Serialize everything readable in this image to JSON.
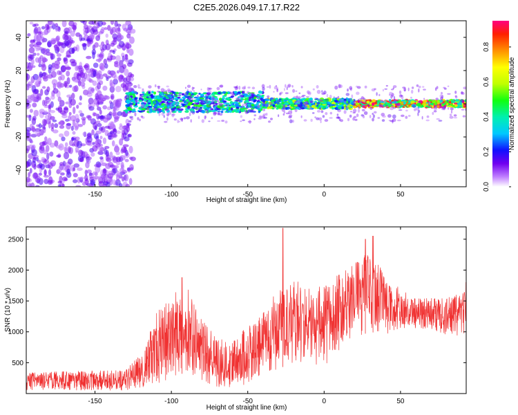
{
  "figure_title": "C2E5.2026.049.17.17.R22",
  "chart_data": [
    {
      "type": "heatmap",
      "xlabel": "Height of straight line (km)",
      "ylabel": "Frequency (Hz)",
      "xlim": [
        -195,
        93
      ],
      "ylim": [
        -50,
        50
      ],
      "xticks": [
        -150,
        -100,
        -50,
        0,
        50
      ],
      "yticks": [
        -40,
        -20,
        0,
        20,
        40
      ],
      "colorbar": {
        "label": "Normalized spectral amplitude",
        "range": [
          0,
          0.95
        ],
        "ticks": [
          0.0,
          0.2,
          0.4,
          0.6,
          0.8
        ],
        "tick_labels": [
          "0.0",
          "0.2",
          "0.4",
          "0.6",
          "0.8"
        ]
      },
      "regions": [
        {
          "x_range": [
            -195,
            -125
          ],
          "freq_range": [
            -50,
            50
          ],
          "amplitude": 0.1,
          "description": "broadband noise"
        },
        {
          "x_range": [
            -130,
            -40
          ],
          "freq_range": [
            -5,
            7
          ],
          "amplitude": 0.45
        },
        {
          "x_range": [
            -40,
            20
          ],
          "freq_range": [
            -3,
            3
          ],
          "amplitude": 0.55
        },
        {
          "x_range": [
            20,
            93
          ],
          "freq_range": [
            -2,
            2
          ],
          "amplitude": 0.9
        }
      ]
    },
    {
      "type": "line",
      "xlabel": "Height of straight line (km)",
      "ylabel": "SNR (10 * v/v)",
      "xlim": [
        -195,
        93
      ],
      "ylim": [
        0,
        2700
      ],
      "xticks": [
        -150,
        -100,
        -50,
        0,
        50
      ],
      "yticks": [
        500,
        1000,
        1500,
        2000,
        2500
      ],
      "color": "#f03232",
      "envelope": [
        {
          "x": -195,
          "low": 50,
          "high": 350
        },
        {
          "x": -130,
          "low": 50,
          "high": 380
        },
        {
          "x": -118,
          "low": 100,
          "high": 700
        },
        {
          "x": -110,
          "low": 150,
          "high": 1300
        },
        {
          "x": -100,
          "low": 250,
          "high": 1600
        },
        {
          "x": -90,
          "low": 350,
          "high": 1800
        },
        {
          "x": -80,
          "low": 200,
          "high": 1200
        },
        {
          "x": -70,
          "low": 100,
          "high": 900
        },
        {
          "x": -60,
          "low": 100,
          "high": 850
        },
        {
          "x": -50,
          "low": 150,
          "high": 1100
        },
        {
          "x": -40,
          "low": 300,
          "high": 1300
        },
        {
          "x": -30,
          "low": 400,
          "high": 1700
        },
        {
          "x": -20,
          "low": 500,
          "high": 1900
        },
        {
          "x": -10,
          "low": 500,
          "high": 1700
        },
        {
          "x": 0,
          "low": 400,
          "high": 1750
        },
        {
          "x": 10,
          "low": 700,
          "high": 1950
        },
        {
          "x": 20,
          "low": 900,
          "high": 2100
        },
        {
          "x": 30,
          "low": 1000,
          "high": 2350
        },
        {
          "x": 40,
          "low": 950,
          "high": 1900
        },
        {
          "x": 50,
          "low": 1050,
          "high": 1700
        },
        {
          "x": 60,
          "low": 1050,
          "high": 1550
        },
        {
          "x": 70,
          "low": 1050,
          "high": 1550
        },
        {
          "x": 80,
          "low": 950,
          "high": 1550
        },
        {
          "x": 93,
          "low": 900,
          "high": 1650
        }
      ],
      "peaks": [
        {
          "x": -27,
          "value": 2680
        },
        {
          "x": 27,
          "value": 2500
        },
        {
          "x": 32,
          "value": 2550
        },
        {
          "x": -93,
          "value": 1880
        },
        {
          "x": 93,
          "value": 1800
        }
      ]
    }
  ]
}
